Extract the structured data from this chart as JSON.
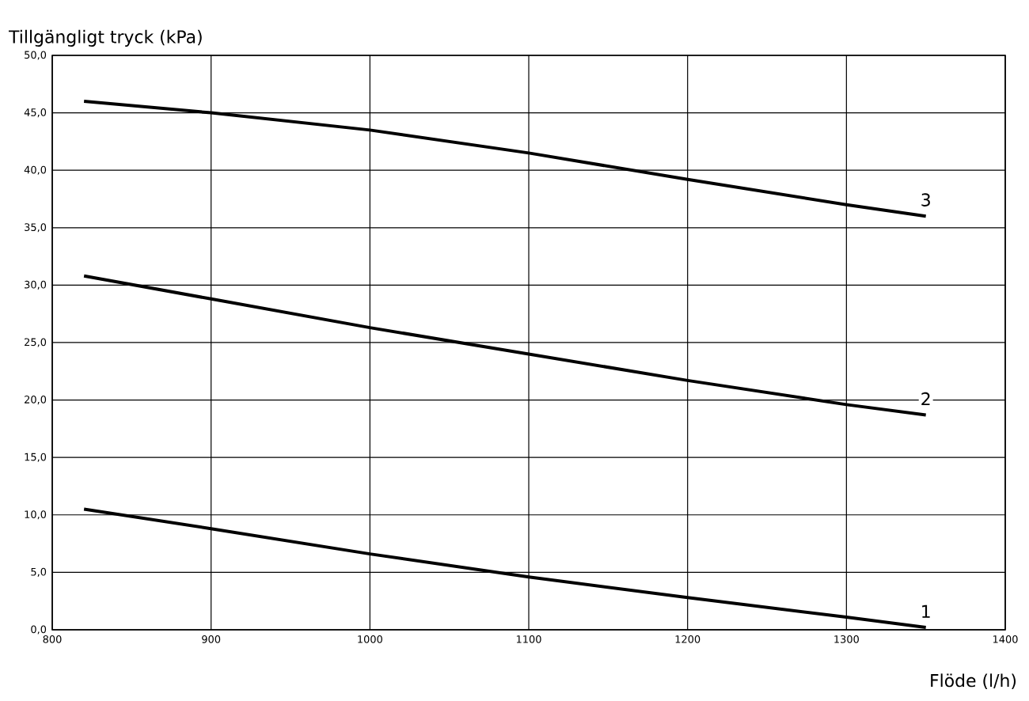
{
  "chart_data": {
    "type": "line",
    "xlabel": "Flöde (l/h)",
    "ylabel": "Tillgängligt tryck (kPa)",
    "xlim": [
      800,
      1400
    ],
    "xticks": [
      800,
      900,
      1000,
      1100,
      1200,
      1300,
      1400
    ],
    "ylim": [
      0,
      50
    ],
    "yticks": [
      {
        "value": 0,
        "label": "0,0"
      },
      {
        "value": 5,
        "label": "5,0"
      },
      {
        "value": 10,
        "label": "10,0"
      },
      {
        "value": 15,
        "label": "15,0"
      },
      {
        "value": 20,
        "label": "20,0"
      },
      {
        "value": 25,
        "label": "25,0"
      },
      {
        "value": 30,
        "label": "30,0"
      },
      {
        "value": 35,
        "label": "35,0"
      },
      {
        "value": 40,
        "label": "40,0"
      },
      {
        "value": 45,
        "label": "45,0"
      },
      {
        "value": 50,
        "label": "50,0"
      }
    ],
    "grid": true,
    "legend": false,
    "marker": "none",
    "line_style": "solid",
    "series": [
      {
        "name": "1",
        "color": "#000000",
        "x": [
          820,
          900,
          1000,
          1100,
          1200,
          1300,
          1350
        ],
        "values": [
          10.5,
          8.8,
          6.6,
          4.6,
          2.8,
          1.1,
          0.2
        ]
      },
      {
        "name": "2",
        "color": "#000000",
        "x": [
          820,
          900,
          1000,
          1100,
          1200,
          1300,
          1350
        ],
        "values": [
          30.8,
          28.8,
          26.3,
          24.0,
          21.7,
          19.6,
          18.7
        ]
      },
      {
        "name": "3",
        "color": "#000000",
        "x": [
          820,
          900,
          1000,
          1100,
          1200,
          1300,
          1350
        ],
        "values": [
          46.0,
          45.0,
          43.5,
          41.5,
          39.2,
          37.0,
          36.0
        ]
      }
    ]
  }
}
